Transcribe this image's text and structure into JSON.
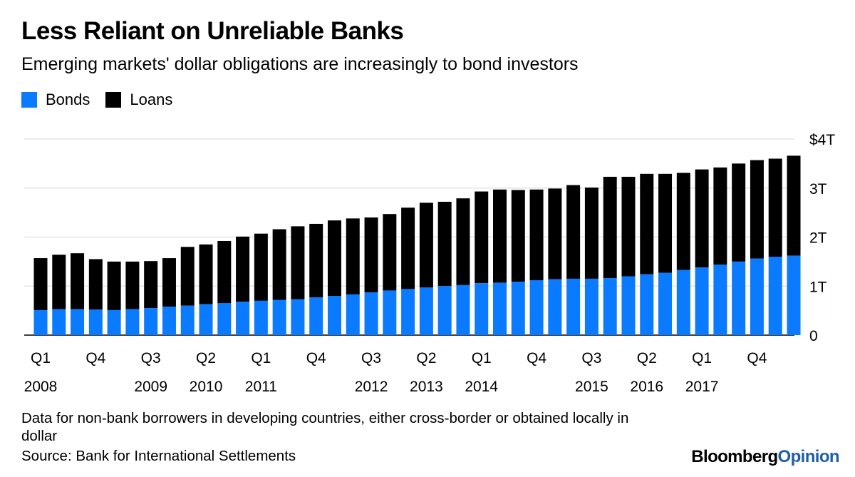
{
  "title": "Less Reliant on Unreliable Banks",
  "subtitle": "Emerging markets' dollar obligations are increasingly to bond investors",
  "legend": [
    {
      "label": "Bonds",
      "color": "#0a7aff"
    },
    {
      "label": "Loans",
      "color": "#000000"
    }
  ],
  "footnote": "Data for non-bank borrowers in developing countries, either cross-border or obtained locally in dollar",
  "source": "Source: Bank for International Settlements",
  "brand": {
    "part1": "Bloomberg",
    "part2": "Opinion"
  },
  "chart_data": {
    "type": "bar",
    "stacked": true,
    "units": "USD trillions",
    "ylim": [
      0,
      4
    ],
    "y_ticks": [
      {
        "value": 0,
        "label": "0"
      },
      {
        "value": 1,
        "label": "1T"
      },
      {
        "value": 2,
        "label": "2T"
      },
      {
        "value": 3,
        "label": "3T"
      },
      {
        "value": 4,
        "label": "$4T"
      }
    ],
    "grid": true,
    "y_axis_position": "right",
    "legend_position": "top-left",
    "categories": [
      "Q1 2008",
      "Q2 2008",
      "Q3 2008",
      "Q4 2008",
      "Q1 2009",
      "Q2 2009",
      "Q3 2009",
      "Q4 2009",
      "Q1 2010",
      "Q2 2010",
      "Q3 2010",
      "Q4 2010",
      "Q1 2011",
      "Q2 2011",
      "Q3 2011",
      "Q4 2011",
      "Q1 2012",
      "Q2 2012",
      "Q3 2012",
      "Q4 2012",
      "Q1 2013",
      "Q2 2013",
      "Q3 2013",
      "Q4 2013",
      "Q1 2014",
      "Q2 2014",
      "Q3 2014",
      "Q4 2014",
      "Q1 2015",
      "Q2 2015",
      "Q3 2015",
      "Q4 2015",
      "Q1 2016",
      "Q2 2016",
      "Q3 2016",
      "Q4 2016",
      "Q1 2017",
      "Q2 2017",
      "Q3 2017",
      "Q4 2017",
      "Q1 2018",
      "Q2 2018"
    ],
    "x_tick_labels": [
      {
        "index": 0,
        "quarter": "Q1",
        "year": "2008"
      },
      {
        "index": 3,
        "quarter": "Q4",
        "year": ""
      },
      {
        "index": 6,
        "quarter": "Q3",
        "year": "2009"
      },
      {
        "index": 9,
        "quarter": "Q2",
        "year": "2010"
      },
      {
        "index": 12,
        "quarter": "Q1",
        "year": "2011"
      },
      {
        "index": 15,
        "quarter": "Q4",
        "year": ""
      },
      {
        "index": 18,
        "quarter": "Q3",
        "year": "2012"
      },
      {
        "index": 21,
        "quarter": "Q2",
        "year": "2013"
      },
      {
        "index": 24,
        "quarter": "Q1",
        "year": "2014"
      },
      {
        "index": 27,
        "quarter": "Q4",
        "year": ""
      },
      {
        "index": 30,
        "quarter": "Q3",
        "year": "2015"
      },
      {
        "index": 33,
        "quarter": "Q2",
        "year": "2016"
      },
      {
        "index": 36,
        "quarter": "Q1",
        "year": "2017"
      },
      {
        "index": 39,
        "quarter": "Q4",
        "year": ""
      }
    ],
    "series": [
      {
        "name": "Bonds",
        "color": "#0a7aff",
        "values": [
          0.51,
          0.53,
          0.53,
          0.52,
          0.51,
          0.53,
          0.55,
          0.58,
          0.6,
          0.63,
          0.65,
          0.68,
          0.7,
          0.72,
          0.73,
          0.77,
          0.8,
          0.83,
          0.87,
          0.91,
          0.94,
          0.97,
          1.0,
          1.02,
          1.06,
          1.07,
          1.09,
          1.12,
          1.14,
          1.15,
          1.15,
          1.16,
          1.2,
          1.24,
          1.27,
          1.33,
          1.38,
          1.44,
          1.5,
          1.56,
          1.6,
          1.62
        ]
      },
      {
        "name": "Loans",
        "color": "#000000",
        "values": [
          1.06,
          1.11,
          1.14,
          1.03,
          0.99,
          0.97,
          0.96,
          0.99,
          1.2,
          1.22,
          1.27,
          1.33,
          1.37,
          1.44,
          1.49,
          1.5,
          1.54,
          1.55,
          1.53,
          1.56,
          1.66,
          1.73,
          1.72,
          1.77,
          1.87,
          1.9,
          1.87,
          1.85,
          1.85,
          1.91,
          1.86,
          2.07,
          2.03,
          2.05,
          2.02,
          1.98,
          2.0,
          1.98,
          2.0,
          2.01,
          2.0,
          2.04
        ]
      }
    ]
  }
}
